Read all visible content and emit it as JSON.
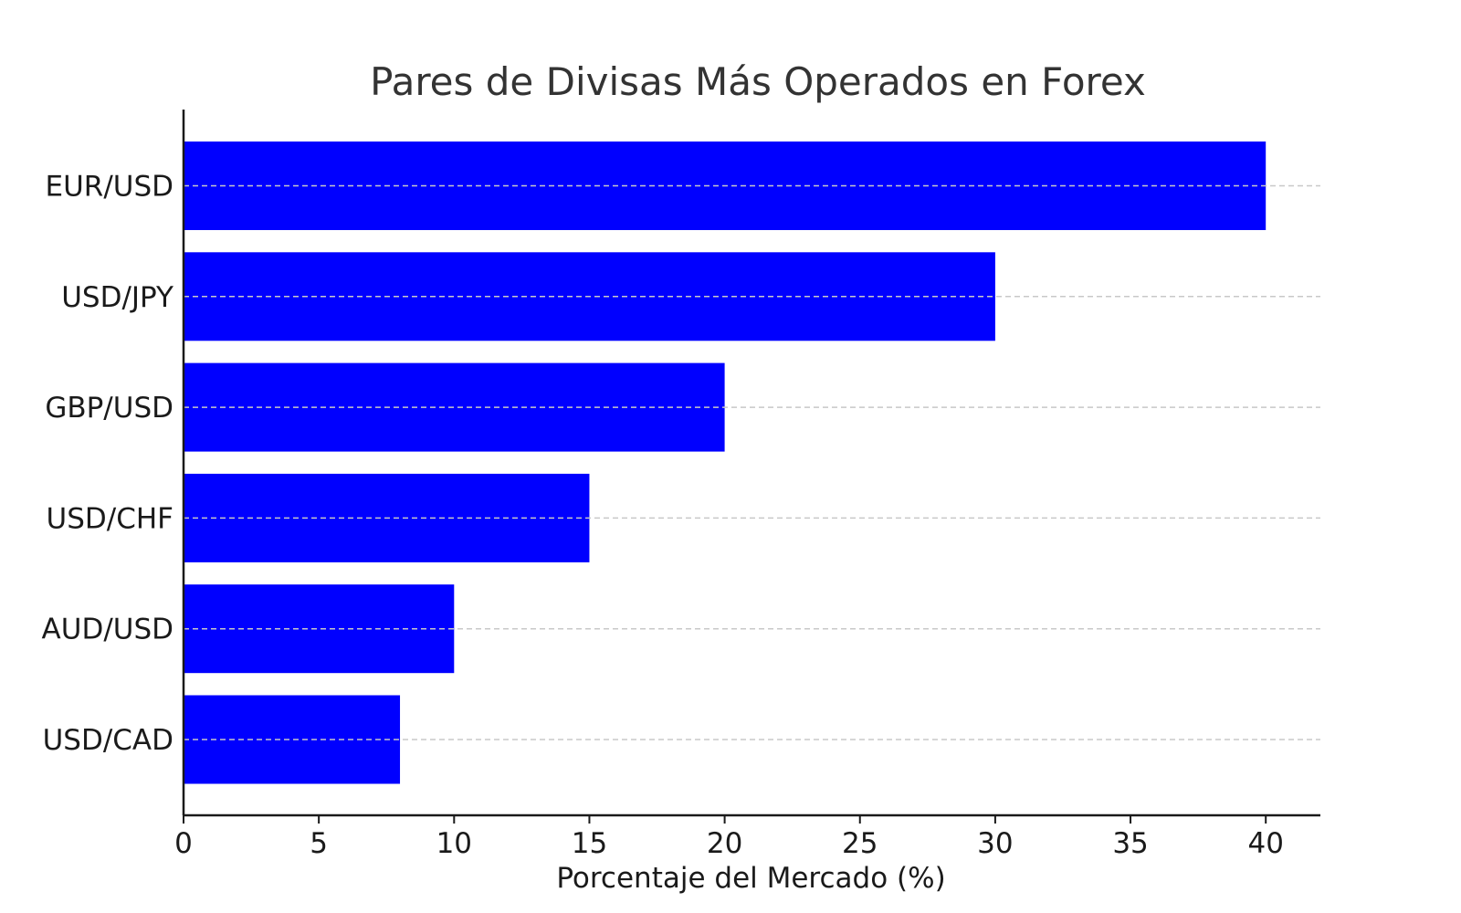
{
  "chart_data": {
    "type": "bar",
    "orientation": "horizontal",
    "title": "Pares de Divisas Más Operados en Forex",
    "xlabel": "Porcentaje del Mercado (%)",
    "ylabel": "",
    "categories": [
      "EUR/USD",
      "USD/JPY",
      "GBP/USD",
      "USD/CHF",
      "AUD/USD",
      "USD/CAD"
    ],
    "values": [
      40,
      30,
      20,
      15,
      10,
      8
    ],
    "xlim": [
      0,
      42
    ],
    "xticks": [
      0,
      5,
      10,
      15,
      20,
      25,
      30,
      35,
      40
    ],
    "bar_color": "#0000ff",
    "grid": "y-dashed",
    "legend": "none"
  }
}
